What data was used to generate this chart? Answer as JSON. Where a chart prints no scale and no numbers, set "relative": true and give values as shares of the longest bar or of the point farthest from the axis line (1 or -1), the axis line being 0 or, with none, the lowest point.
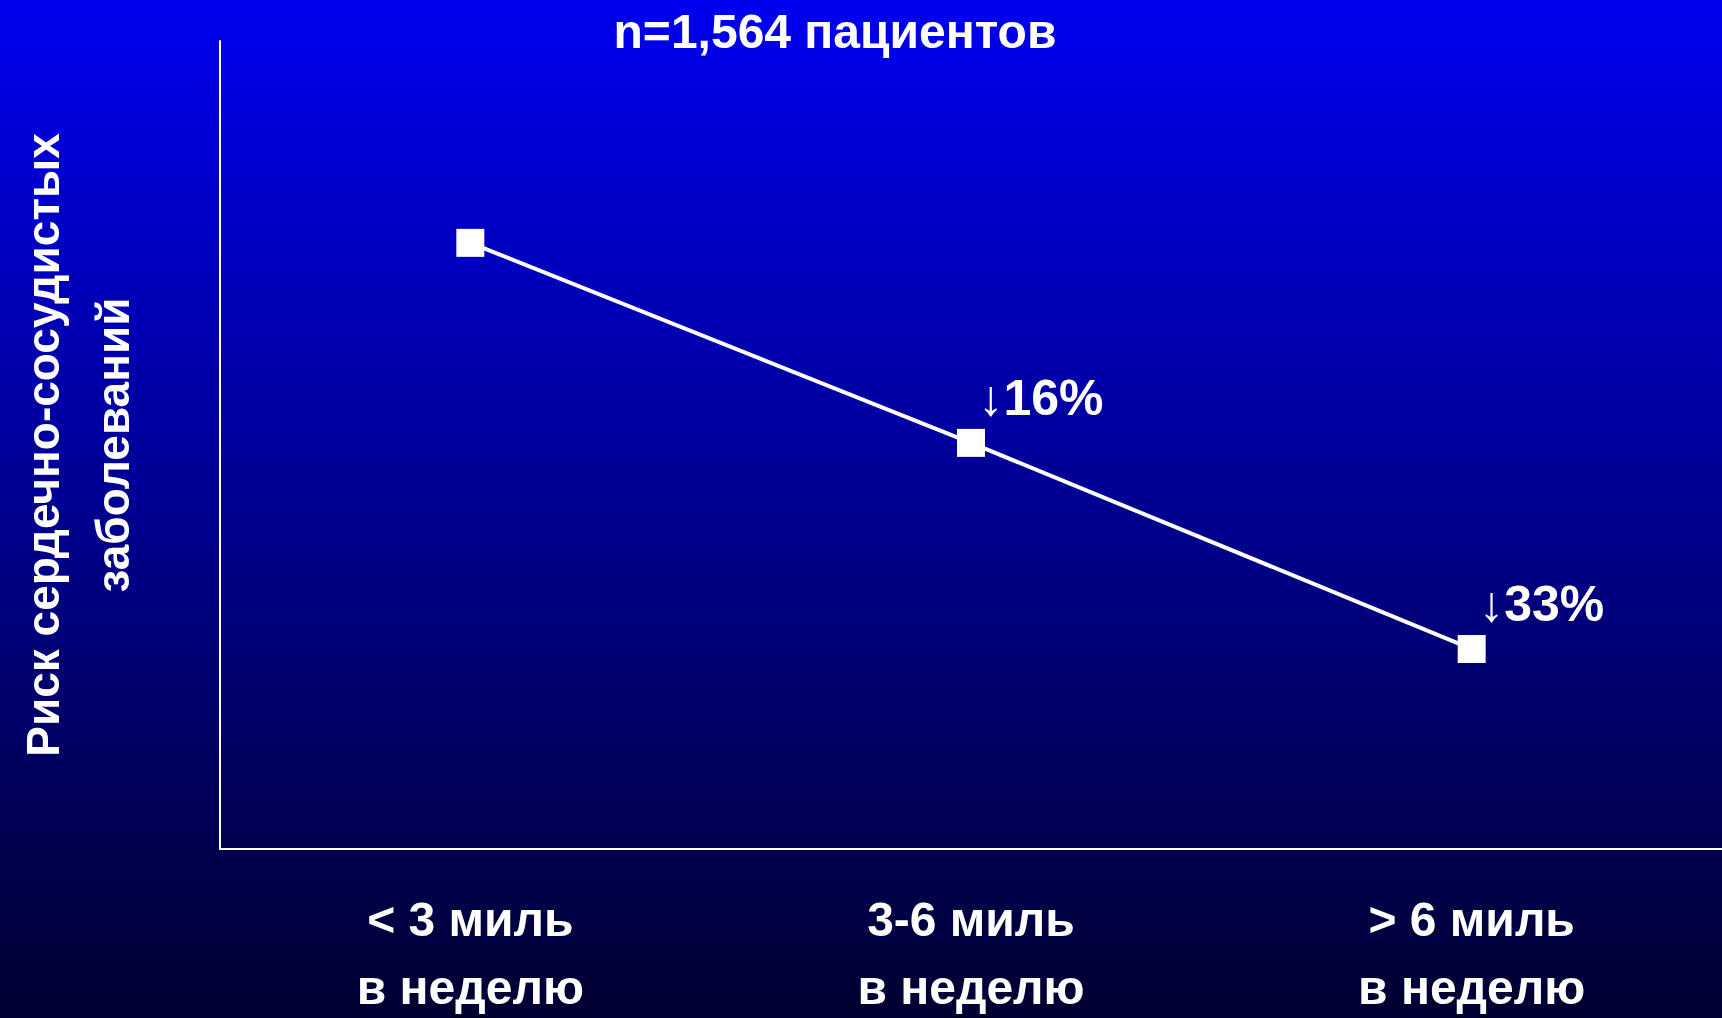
{
  "chart_data": {
    "type": "line",
    "title": "n=1,564 пациентов",
    "ylabel": "Риск сердечно-сосудистых\nзаболеваний",
    "categories": [
      "< 3 миль\nв неделю",
      "3-6 миль\nв неделю",
      "> 6 миль\nв неделю"
    ],
    "values": [
      1,
      0.67,
      0.33
    ],
    "color": "#ffffff",
    "relative": true,
    "marker": "square",
    "line_style": "solid",
    "annotations": [
      {
        "text": "↓16%",
        "x": "3-6 миль\nв неделю",
        "y": 0.67
      },
      {
        "text": "↓33%",
        "x": "> 6 миль\nв неделю",
        "y": 0.33
      }
    ]
  }
}
